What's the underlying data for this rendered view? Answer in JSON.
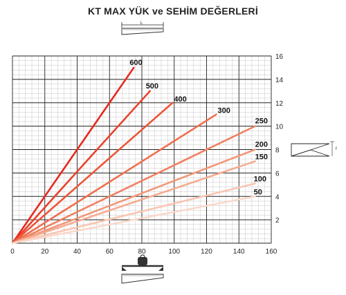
{
  "title": "KT MAX YÜK ve SEHİM DEĞERLERİ",
  "icons": {
    "top": "beam-length-icon",
    "right": "deflection-icon",
    "bottom": "load-weight-icon",
    "length_label": "L",
    "deflection_label": "f"
  },
  "chart_data": {
    "type": "line",
    "xlim": [
      0,
      160
    ],
    "ylim": [
      0,
      16
    ],
    "x_ticks": [
      "0",
      "20",
      "40",
      "60",
      "80",
      "100",
      "120",
      "140",
      "160"
    ],
    "y_ticks": [
      "2",
      "4",
      "6",
      "8",
      "10",
      "12",
      "14",
      "16"
    ],
    "y_axis_side": "right",
    "grid": true,
    "series": [
      {
        "name": "600",
        "color": "#e8281e",
        "x": [
          0,
          75
        ],
        "y": [
          0,
          15
        ]
      },
      {
        "name": "500",
        "color": "#e9402c",
        "x": [
          0,
          85
        ],
        "y": [
          0,
          13
        ]
      },
      {
        "name": "400",
        "color": "#ec5638",
        "x": [
          0,
          99
        ],
        "y": [
          0,
          12
        ]
      },
      {
        "name": "300",
        "color": "#ef6f4f",
        "x": [
          0,
          126
        ],
        "y": [
          0,
          11
        ]
      },
      {
        "name": "250",
        "color": "#f08060",
        "x": [
          0,
          150
        ],
        "y": [
          0,
          10
        ]
      },
      {
        "name": "200",
        "color": "#f39778",
        "x": [
          0,
          150
        ],
        "y": [
          0,
          8
        ]
      },
      {
        "name": "150",
        "color": "#f5ab90",
        "x": [
          0,
          150
        ],
        "y": [
          0,
          7
        ]
      },
      {
        "name": "100",
        "color": "#f8c6b2",
        "x": [
          0,
          150
        ],
        "y": [
          0,
          5.1
        ]
      },
      {
        "name": "50",
        "color": "#fad8ca",
        "x": [
          0,
          150
        ],
        "y": [
          0,
          4
        ]
      }
    ]
  }
}
